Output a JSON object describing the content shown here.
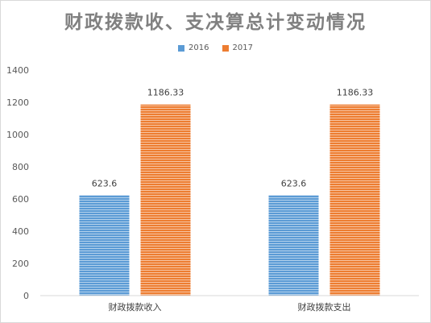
{
  "chart_data": {
    "type": "bar",
    "title": "财政拨款收、支决算总计变动情况",
    "categories": [
      "财政拨款收入",
      "财政拨款支出"
    ],
    "series": [
      {
        "name": "2016",
        "values": [
          623.6,
          623.6
        ],
        "labels": [
          "623.6",
          "623.6"
        ],
        "color": "#5b9bd5"
      },
      {
        "name": "2017",
        "values": [
          1186.33,
          1186.33
        ],
        "labels": [
          "1186.33",
          "1186.33"
        ],
        "color": "#ed7d31"
      }
    ],
    "ylim": [
      0,
      1400
    ],
    "yticks": [
      "0",
      "200",
      "400",
      "600",
      "800",
      "1000",
      "1200",
      "1400"
    ],
    "legend": "top",
    "grid": false
  }
}
